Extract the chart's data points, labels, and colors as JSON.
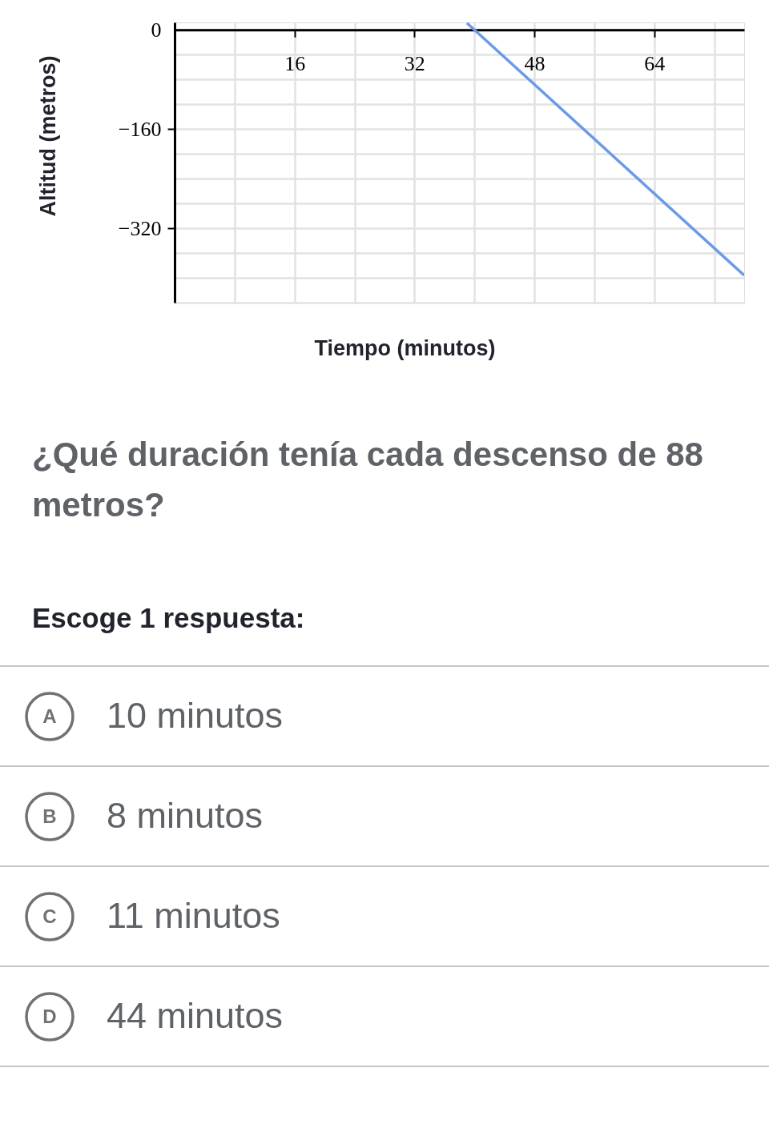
{
  "chart_data": {
    "type": "line",
    "xlabel": "Tiempo (minutos)",
    "ylabel": "Altitud (metros)",
    "x": [
      39,
      76
    ],
    "series": [
      {
        "color": "#6b9ae8",
        "values": [
          11,
          -396
        ]
      }
    ],
    "xlim": [
      0,
      76
    ],
    "ylim": [
      -440,
      12
    ],
    "xticks": [
      {
        "value": 8,
        "label": null
      },
      16,
      {
        "value": 24,
        "label": null
      },
      32,
      {
        "value": 40,
        "label": null
      },
      48,
      {
        "value": 56,
        "label": null
      },
      64,
      {
        "value": 72,
        "label": null
      }
    ],
    "yticks": [
      0,
      {
        "value": -40,
        "label": null
      },
      {
        "value": -80,
        "label": null
      },
      {
        "value": -120,
        "label": null
      },
      {
        "value": -160,
        "label": "−160"
      },
      {
        "value": -200,
        "label": null
      },
      {
        "value": -240,
        "label": null
      },
      {
        "value": -280,
        "label": null
      },
      {
        "value": -320,
        "label": "−320"
      },
      {
        "value": -360,
        "label": null
      },
      {
        "value": -400,
        "label": null
      },
      {
        "value": -440,
        "label": null
      }
    ],
    "grid": true,
    "annotations": [
      "¿Qué duración tenía cada descenso de 88 metros?",
      "Escoge 1 respuesta:",
      "A",
      "10 minutos",
      "B",
      "8 minutos",
      "C",
      "11 minutos",
      "D",
      "44 minutos"
    ]
  }
}
